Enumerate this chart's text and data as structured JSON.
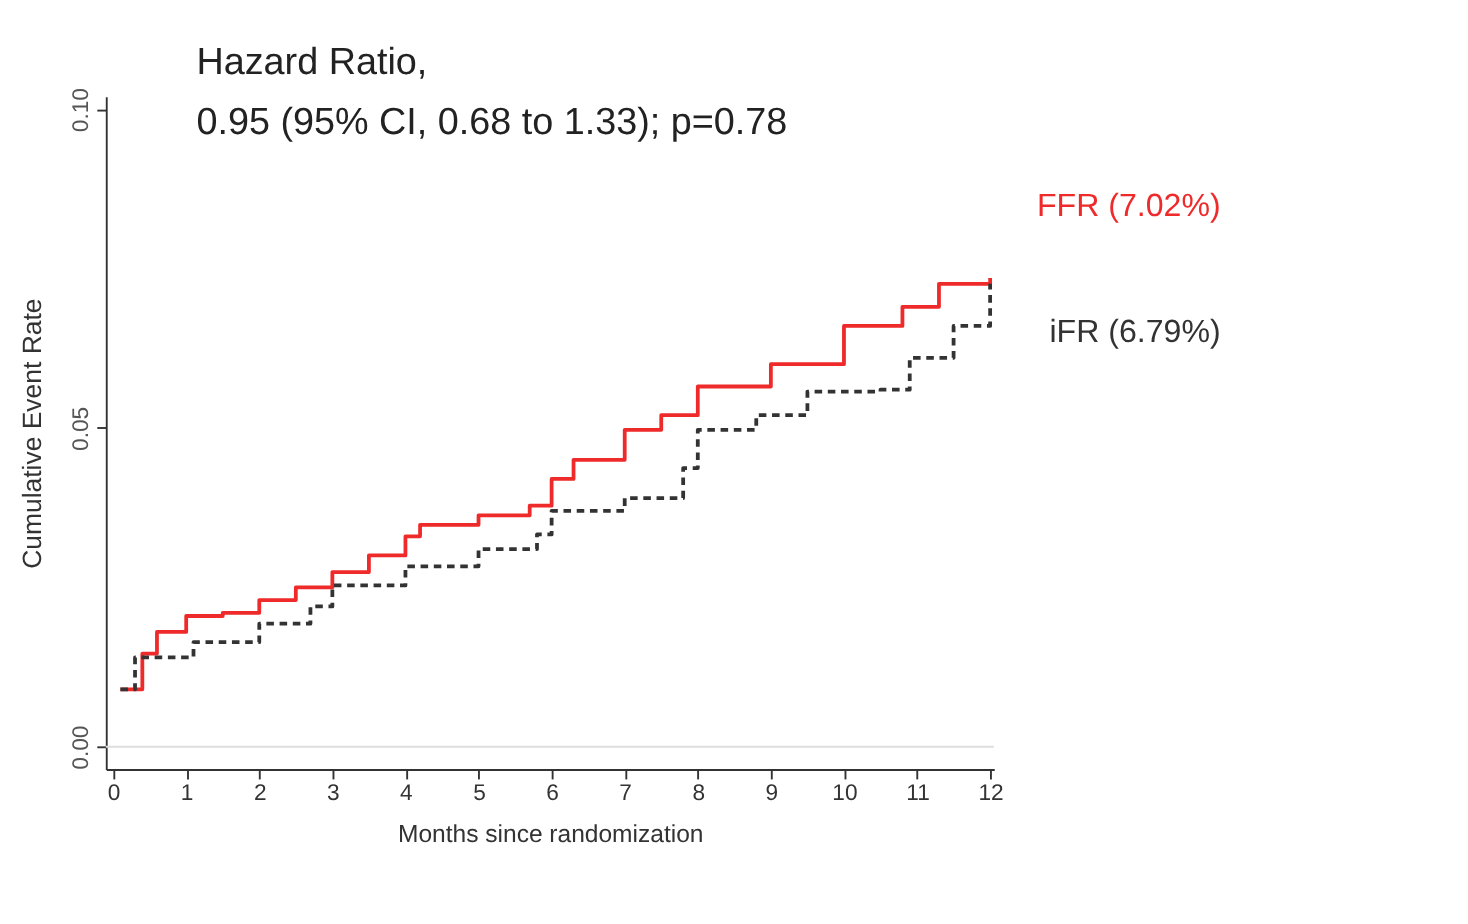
{
  "chart_data": {
    "type": "step",
    "xlabel": "Months since randomization",
    "ylabel": "Cumulative Event Rate",
    "annotations": [
      "Hazard Ratio,",
      "0.95 (95% CI, 0.68 to 1.33); p=0.78"
    ],
    "xlim": [
      -0.1,
      12.05
    ],
    "xticks": [
      0,
      1,
      2,
      3,
      4,
      5,
      6,
      7,
      8,
      9,
      10,
      11,
      12
    ],
    "ylim": [
      -0.0035,
      0.102
    ],
    "yticks": [
      {
        "value": 0,
        "label": "0.00"
      },
      {
        "value": 0.05,
        "label": "0.05"
      },
      {
        "value": 0.1,
        "label": "0.10"
      }
    ],
    "ref_lines": [
      {
        "axis": "y",
        "value": 0,
        "color": "#dddddd"
      }
    ],
    "grid": false,
    "legend": false,
    "marker": "none",
    "series": [
      {
        "name": "FFR (7.02%)",
        "color": "#ee2a2a",
        "line_style": "solid",
        "x": [
          0.1,
          0.4,
          0.6,
          1.0,
          1.5,
          2.0,
          2.5,
          3.0,
          3.5,
          4.0,
          4.2,
          5.0,
          5.7,
          6.0,
          6.3,
          7.0,
          7.5,
          8.0,
          9.0,
          10.0,
          10.8,
          11.3,
          12.0
        ],
        "values": [
          0.009,
          0.0146,
          0.018,
          0.0205,
          0.021,
          0.023,
          0.025,
          0.0274,
          0.03,
          0.033,
          0.0348,
          0.0363,
          0.0378,
          0.042,
          0.045,
          0.0497,
          0.052,
          0.0565,
          0.06,
          0.066,
          0.069,
          0.0726,
          0.0735
        ]
      },
      {
        "name": "iFR (6.79%)",
        "color": "#333333",
        "line_style": "dashed",
        "x": [
          0.1,
          0.3,
          0.9,
          1.1,
          2.0,
          2.7,
          3.0,
          3.6,
          4.0,
          5.0,
          5.8,
          6.0,
          7.0,
          7.8,
          8.0,
          8.8,
          9.5,
          10.5,
          10.9,
          11.5,
          12.0
        ],
        "values": [
          0.009,
          0.014,
          0.014,
          0.0164,
          0.0193,
          0.022,
          0.0253,
          0.0253,
          0.0283,
          0.031,
          0.0333,
          0.037,
          0.039,
          0.0437,
          0.0497,
          0.052,
          0.0557,
          0.056,
          0.061,
          0.066,
          0.0726
        ]
      }
    ]
  }
}
